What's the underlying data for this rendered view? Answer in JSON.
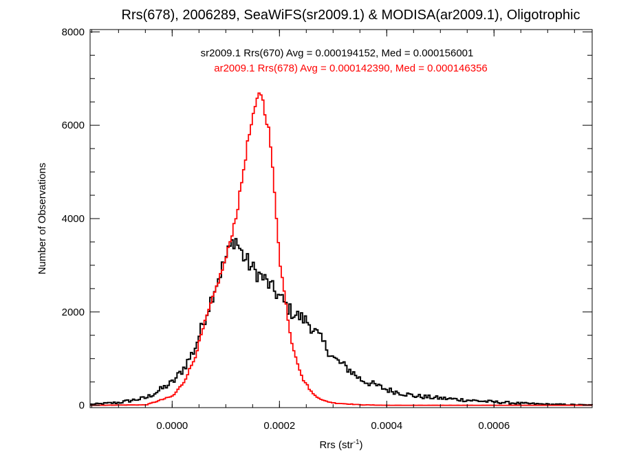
{
  "chart_data": {
    "type": "histogram",
    "title": "Rrs(678), 2006289, SeaWiFS(sr2009.1) & MODISA(ar2009.1), Oligotrophic",
    "xlabel_base": "Rrs (str",
    "xlabel_sup": "-1",
    "xlabel_end": ")",
    "ylabel": "Number of Observations",
    "xlim": [
      -0.000153,
      0.000783
    ],
    "ylim": [
      -50,
      8050
    ],
    "x_ticks": [
      0.0,
      0.0002,
      0.0004,
      0.0006
    ],
    "x_tick_labels": [
      "0.0000",
      "0.0002",
      "0.0004",
      "0.0006"
    ],
    "y_ticks": [
      0,
      2000,
      4000,
      6000,
      8000
    ],
    "y_tick_labels": [
      "0",
      "2000",
      "4000",
      "6000",
      "8000"
    ],
    "grid": false,
    "legend_placement": "top-center",
    "series": [
      {
        "legend": "sr2009.1 Rrs(670) Avg = 0.000194152, Med = 0.000156001",
        "color": "#000000",
        "peak_x": 0.000115,
        "peak_y": 3600,
        "points": [
          [
            -0.00015,
            20
          ],
          [
            -0.0001,
            60
          ],
          [
            -5e-05,
            160
          ],
          [
            -3e-05,
            290
          ],
          [
            0.0,
            500
          ],
          [
            2e-05,
            800
          ],
          [
            4e-05,
            1200
          ],
          [
            6e-05,
            1900
          ],
          [
            8e-05,
            2600
          ],
          [
            0.0001,
            3200
          ],
          [
            0.000115,
            3600
          ],
          [
            0.00013,
            3200
          ],
          [
            0.00015,
            2900
          ],
          [
            0.00017,
            2700
          ],
          [
            0.0002,
            2300
          ],
          [
            0.00022,
            2000
          ],
          [
            0.00025,
            1800
          ],
          [
            0.00027,
            1500
          ],
          [
            0.0003,
            1000
          ],
          [
            0.00033,
            750
          ],
          [
            0.00035,
            550
          ],
          [
            0.0004,
            330
          ],
          [
            0.00045,
            200
          ],
          [
            0.0005,
            150
          ],
          [
            0.00055,
            110
          ],
          [
            0.0006,
            70
          ],
          [
            0.00065,
            40
          ],
          [
            0.0007,
            20
          ],
          [
            0.00078,
            5
          ]
        ]
      },
      {
        "legend": "ar2009.1 Rrs(678) Avg = 0.000142390, Med = 0.000146356",
        "color": "#ff0000",
        "peak_x": 0.000162,
        "peak_y": 6800,
        "points": [
          [
            -0.00015,
            0
          ],
          [
            -5e-05,
            10
          ],
          [
            0.0,
            200
          ],
          [
            2e-05,
            500
          ],
          [
            4e-05,
            1000
          ],
          [
            6e-05,
            1800
          ],
          [
            8e-05,
            2500
          ],
          [
            0.0001,
            3200
          ],
          [
            0.00012,
            4200
          ],
          [
            0.00014,
            5700
          ],
          [
            0.000162,
            6800
          ],
          [
            0.00018,
            5800
          ],
          [
            0.0002,
            3000
          ],
          [
            0.00022,
            1400
          ],
          [
            0.00024,
            600
          ],
          [
            0.00026,
            250
          ],
          [
            0.00028,
            100
          ],
          [
            0.0003,
            50
          ],
          [
            0.00035,
            10
          ],
          [
            0.0004,
            0
          ],
          [
            0.00078,
            0
          ]
        ]
      }
    ]
  }
}
